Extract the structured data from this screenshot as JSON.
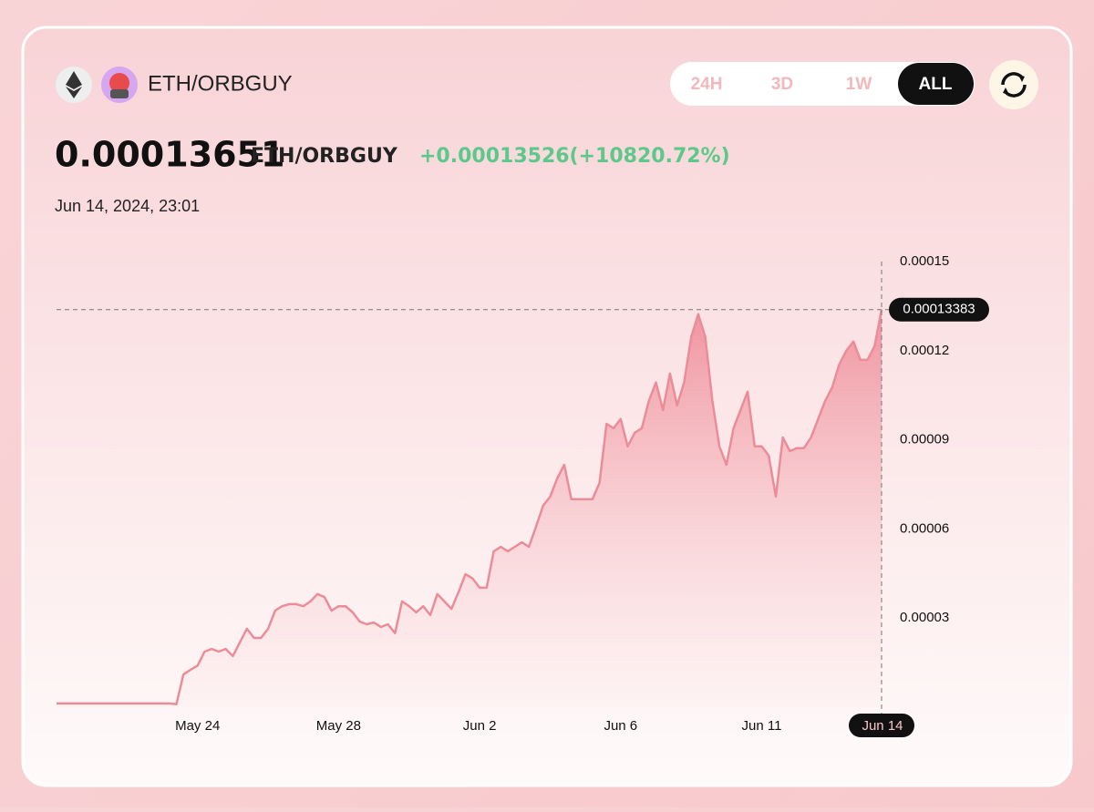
{
  "header": {
    "pair": "ETH/ORBGUY",
    "tabs": [
      "24H",
      "3D",
      "1W",
      "ALL"
    ],
    "active_tab": 3,
    "price": "0.00013651",
    "unit": "ETH/ORBGUY",
    "change": "+0.00013526(+10820.72%)",
    "date": "Jun 14, 2024, 23:01"
  },
  "chart_data": {
    "type": "area",
    "color": "#ec8c98",
    "categories": [
      null,
      null,
      null,
      null,
      null,
      null,
      null,
      null,
      null,
      null,
      null,
      null,
      null,
      null,
      null,
      null,
      null,
      null,
      null,
      null,
      "May 24",
      null,
      null,
      null,
      null,
      null,
      null,
      null,
      null,
      null,
      null,
      null,
      null,
      null,
      null,
      null,
      null,
      null,
      null,
      null,
      "May 28",
      null,
      null,
      null,
      null,
      null,
      null,
      null,
      null,
      null,
      null,
      null,
      null,
      null,
      null,
      null,
      null,
      null,
      null,
      null,
      "Jun 2",
      null,
      null,
      null,
      null,
      null,
      null,
      null,
      null,
      null,
      null,
      null,
      null,
      null,
      null,
      null,
      null,
      null,
      null,
      null,
      "Jun 6",
      null,
      null,
      null,
      null,
      null,
      null,
      null,
      null,
      null,
      null,
      null,
      null,
      null,
      null,
      null,
      null,
      null,
      null,
      null,
      "Jun 11",
      null,
      null,
      null,
      null,
      null,
      null,
      null,
      null,
      null,
      null,
      null,
      null,
      null,
      null,
      null,
      null,
      "Jun 14"
    ],
    "values": [
      1.25e-06,
      1.25e-06,
      1.25e-06,
      1.25e-06,
      1.25e-06,
      1.25e-06,
      1.25e-06,
      1.25e-06,
      1.25e-06,
      1.25e-06,
      1.25e-06,
      1.25e-06,
      1.25e-06,
      1.25e-06,
      1.25e-06,
      1.25e-06,
      1.25e-06,
      1e-06,
      1.1e-05,
      1.26e-05,
      1.4e-05,
      1.87e-05,
      1.96e-05,
      1.87e-05,
      1.96e-05,
      1.72e-05,
      2.18e-05,
      2.64e-05,
      2.33e-05,
      2.33e-05,
      2.64e-05,
      3.25e-05,
      3.4e-05,
      3.47e-05,
      3.47e-05,
      3.4e-05,
      3.56e-05,
      3.81e-05,
      3.71e-05,
      3.25e-05,
      3.4e-05,
      3.4e-05,
      3.19e-05,
      2.88e-05,
      2.79e-05,
      2.85e-05,
      2.7e-05,
      2.79e-05,
      2.49e-05,
      3.56e-05,
      3.4e-05,
      3.19e-05,
      3.4e-05,
      3.1e-05,
      3.81e-05,
      3.56e-05,
      3.31e-05,
      3.87e-05,
      4.48e-05,
      4.33e-05,
      4.02e-05,
      4.02e-05,
      5.25e-05,
      5.4e-05,
      5.25e-05,
      5.4e-05,
      5.55e-05,
      5.4e-05,
      6.08e-05,
      6.78e-05,
      7.09e-05,
      7.7e-05,
      8.16e-05,
      7e-05,
      7e-05,
      7e-05,
      7e-05,
      7.55e-05,
      9.54e-05,
      9.39e-05,
      9.7e-05,
      8.78e-05,
      9.24e-05,
      9.39e-05,
      0.0001031,
      0.0001093,
      0.0001,
      0.0001123,
      0.0001016,
      0.0001093,
      0.0001246,
      0.0001323,
      0.0001246,
      0.0001031,
      8.78e-05,
      8.16e-05,
      9.39e-05,
      0.0001,
      0.0001062,
      8.78e-05,
      8.78e-05,
      8.47e-05,
      7.09e-05,
      9.08e-05,
      8.62e-05,
      8.72e-05,
      8.72e-05,
      9.08e-05,
      9.7e-05,
      0.0001031,
      0.0001077,
      0.0001154,
      0.00012,
      0.0001231,
      0.0001169,
      0.0001169,
      0.0001215,
      0.00013383
    ],
    "ylim": [
      0,
      0.00015
    ],
    "yticks": [
      3e-05,
      6e-05,
      9e-05,
      0.00012,
      0.00015
    ],
    "crosshair_value": 0.00013383,
    "crosshair_index_label": 117
  }
}
